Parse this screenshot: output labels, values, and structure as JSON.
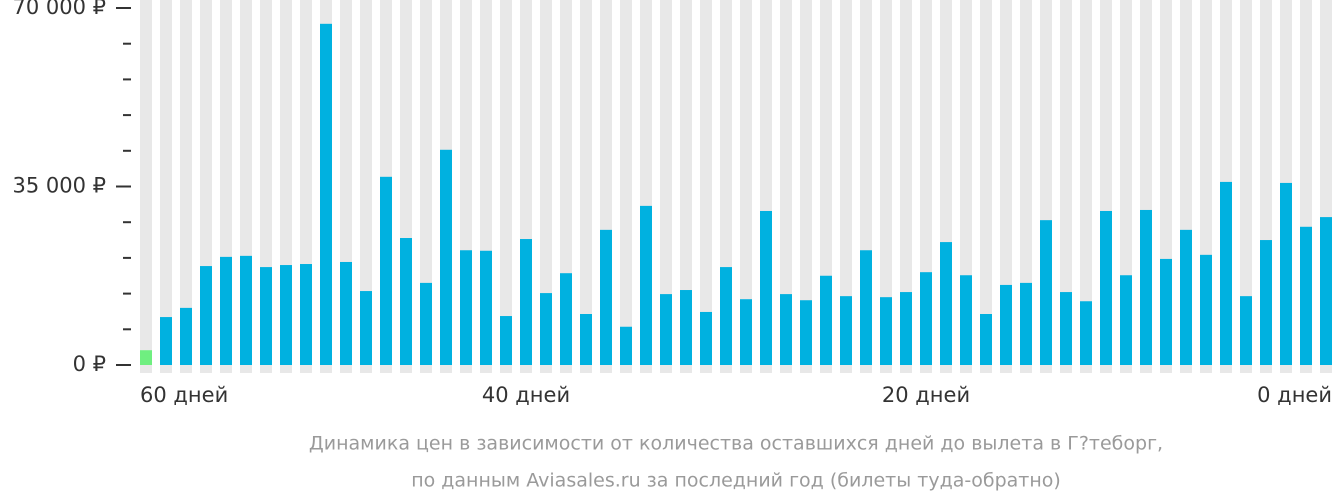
{
  "chart_data": {
    "type": "bar",
    "categories": [
      "60 дней",
      null,
      null,
      null,
      null,
      null,
      null,
      null,
      null,
      null,
      null,
      null,
      null,
      null,
      null,
      null,
      null,
      null,
      null,
      "40 дней",
      null,
      null,
      null,
      null,
      null,
      null,
      null,
      null,
      null,
      null,
      null,
      null,
      null,
      null,
      null,
      null,
      null,
      null,
      null,
      "20 дней",
      null,
      null,
      null,
      null,
      null,
      null,
      null,
      null,
      null,
      null,
      null,
      null,
      null,
      null,
      null,
      null,
      null,
      null,
      null,
      "0 дней"
    ],
    "values": [
      2900,
      9400,
      11200,
      19400,
      21200,
      21400,
      19200,
      19600,
      19800,
      66900,
      20200,
      14500,
      36900,
      24900,
      16100,
      42200,
      22500,
      22400,
      9600,
      24700,
      14100,
      18000,
      10000,
      26500,
      7500,
      31200,
      13900,
      14700,
      10400,
      19200,
      12900,
      30200,
      13900,
      12700,
      17500,
      13500,
      22500,
      13300,
      14300,
      18200,
      24100,
      17600,
      10000,
      15700,
      16100,
      28400,
      14300,
      12500,
      30200,
      17600,
      30400,
      20800,
      26500,
      21600,
      35900,
      13500,
      24500,
      35700,
      27100,
      29000
    ],
    "colors": [
      "#6fef80",
      "#00b1e0",
      "#00b1e0",
      "#00b1e0",
      "#00b1e0",
      "#00b1e0",
      "#00b1e0",
      "#00b1e0",
      "#00b1e0",
      "#00b1e0",
      "#00b1e0",
      "#00b1e0",
      "#00b1e0",
      "#00b1e0",
      "#00b1e0",
      "#00b1e0",
      "#00b1e0",
      "#00b1e0",
      "#00b1e0",
      "#00b1e0",
      "#00b1e0",
      "#00b1e0",
      "#00b1e0",
      "#00b1e0",
      "#00b1e0",
      "#00b1e0",
      "#00b1e0",
      "#00b1e0",
      "#00b1e0",
      "#00b1e0",
      "#00b1e0",
      "#00b1e0",
      "#00b1e0",
      "#00b1e0",
      "#00b1e0",
      "#00b1e0",
      "#00b1e0",
      "#00b1e0",
      "#00b1e0",
      "#00b1e0",
      "#00b1e0",
      "#00b1e0",
      "#00b1e0",
      "#00b1e0",
      "#00b1e0",
      "#00b1e0",
      "#00b1e0",
      "#00b1e0",
      "#00b1e0",
      "#00b1e0",
      "#00b1e0",
      "#00b1e0",
      "#00b1e0",
      "#00b1e0",
      "#00b1e0",
      "#00b1e0",
      "#00b1e0",
      "#00b1e0",
      "#00b1e0",
      "#00b1e0"
    ],
    "background_color": "#e8e8e8",
    "ylim": [
      0,
      70000
    ],
    "yticks": [
      {
        "value": 0,
        "label": "0 ₽"
      },
      {
        "value": 35000,
        "label": "35 000 ₽"
      },
      {
        "value": 70000,
        "label": "70 000 ₽"
      }
    ],
    "minor_yticks": [
      7000,
      14000,
      21000,
      28000,
      42000,
      49000,
      56000,
      63000
    ],
    "caption": [
      "Динамика цен в зависимости от количества оставшихся дней до вылета в Г?теборг,",
      "по данным Aviasales.ru за последний год (билеты туда-обратно)"
    ]
  }
}
